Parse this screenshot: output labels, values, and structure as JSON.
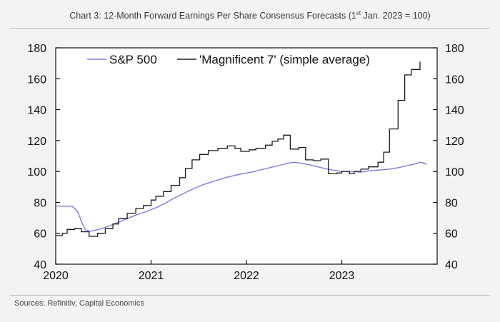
{
  "title_main": "Chart 3: 12-Month Forward Earnings Per Share Consensus Forecasts (1",
  "title_sup": "st",
  "title_tail": " Jan. 2023 = 100)",
  "source": "Sources: Refinitiv, Capital Economics",
  "chart_data": {
    "type": "line",
    "title": "Chart 3: 12-Month Forward Earnings Per Share Consensus Forecasts (1st Jan. 2023 = 100)",
    "x_tick_labels": [
      "2020",
      "2021",
      "2022",
      "2023"
    ],
    "x_tick_values": [
      2020,
      2021,
      2022,
      2023
    ],
    "xlim": [
      2020,
      2024
    ],
    "ylim": [
      40,
      180
    ],
    "y_ticks": [
      40,
      60,
      80,
      100,
      120,
      140,
      160,
      180
    ],
    "y2_ticks": [
      40,
      60,
      80,
      100,
      120,
      140,
      160,
      180
    ],
    "legend_placement": "top",
    "grid": false,
    "series": [
      {
        "name": "S&P 500",
        "color": "#7b7be6",
        "step": false,
        "points": [
          [
            2020.0,
            77.5
          ],
          [
            2020.1,
            77.5
          ],
          [
            2020.17,
            77.5
          ],
          [
            2020.22,
            75
          ],
          [
            2020.25,
            71
          ],
          [
            2020.28,
            66
          ],
          [
            2020.31,
            62.5
          ],
          [
            2020.34,
            61.5
          ],
          [
            2020.38,
            61.5
          ],
          [
            2020.45,
            62.5
          ],
          [
            2020.55,
            64.5
          ],
          [
            2020.65,
            67
          ],
          [
            2020.75,
            69.5
          ],
          [
            2020.85,
            72
          ],
          [
            2020.95,
            74
          ],
          [
            2021.05,
            76.5
          ],
          [
            2021.15,
            79.5
          ],
          [
            2021.25,
            83
          ],
          [
            2021.35,
            86
          ],
          [
            2021.45,
            89
          ],
          [
            2021.55,
            91.5
          ],
          [
            2021.65,
            93.5
          ],
          [
            2021.75,
            95.5
          ],
          [
            2021.85,
            97
          ],
          [
            2021.95,
            98.5
          ],
          [
            2022.05,
            99.5
          ],
          [
            2022.15,
            101
          ],
          [
            2022.25,
            102.5
          ],
          [
            2022.35,
            104
          ],
          [
            2022.45,
            105.5
          ],
          [
            2022.5,
            106
          ],
          [
            2022.55,
            105.5
          ],
          [
            2022.65,
            104.5
          ],
          [
            2022.75,
            103
          ],
          [
            2022.85,
            101.5
          ],
          [
            2022.95,
            100.5
          ],
          [
            2023.0,
            100
          ],
          [
            2023.1,
            100
          ],
          [
            2023.2,
            99.5
          ],
          [
            2023.3,
            100.5
          ],
          [
            2023.4,
            101
          ],
          [
            2023.5,
            101.5
          ],
          [
            2023.6,
            102.5
          ],
          [
            2023.7,
            104
          ],
          [
            2023.78,
            105
          ],
          [
            2023.82,
            106
          ],
          [
            2023.86,
            105.5
          ],
          [
            2023.89,
            104.5
          ]
        ]
      },
      {
        "name": "'Magnificent 7' (simple average)",
        "color": "#1a1a1a",
        "step": true,
        "points": [
          [
            2020.0,
            58.5
          ],
          [
            2020.07,
            60
          ],
          [
            2020.12,
            62.5
          ],
          [
            2020.2,
            63
          ],
          [
            2020.27,
            61
          ],
          [
            2020.35,
            58
          ],
          [
            2020.44,
            60
          ],
          [
            2020.52,
            63
          ],
          [
            2020.6,
            66
          ],
          [
            2020.66,
            69.5
          ],
          [
            2020.75,
            73
          ],
          [
            2020.84,
            76
          ],
          [
            2020.92,
            78
          ],
          [
            2021.0,
            81.5
          ],
          [
            2021.05,
            84
          ],
          [
            2021.13,
            87
          ],
          [
            2021.21,
            91
          ],
          [
            2021.3,
            96
          ],
          [
            2021.36,
            102
          ],
          [
            2021.43,
            107.5
          ],
          [
            2021.51,
            111
          ],
          [
            2021.6,
            113.5
          ],
          [
            2021.7,
            115
          ],
          [
            2021.8,
            116.5
          ],
          [
            2021.88,
            115
          ],
          [
            2021.94,
            113
          ],
          [
            2022.03,
            114
          ],
          [
            2022.1,
            115
          ],
          [
            2022.2,
            117
          ],
          [
            2022.27,
            119.5
          ],
          [
            2022.33,
            121
          ],
          [
            2022.39,
            123.5
          ],
          [
            2022.46,
            114.5
          ],
          [
            2022.55,
            115.5
          ],
          [
            2022.62,
            107.5
          ],
          [
            2022.7,
            107
          ],
          [
            2022.78,
            108
          ],
          [
            2022.86,
            98.5
          ],
          [
            2022.95,
            99
          ],
          [
            2023.0,
            100
          ],
          [
            2023.08,
            98.5
          ],
          [
            2023.13,
            100
          ],
          [
            2023.2,
            101.5
          ],
          [
            2023.28,
            103
          ],
          [
            2023.38,
            106
          ],
          [
            2023.44,
            112.5
          ],
          [
            2023.5,
            127.5
          ],
          [
            2023.59,
            146
          ],
          [
            2023.66,
            162.5
          ],
          [
            2023.73,
            166
          ],
          [
            2023.77,
            166
          ],
          [
            2023.82,
            171
          ]
        ]
      }
    ]
  }
}
